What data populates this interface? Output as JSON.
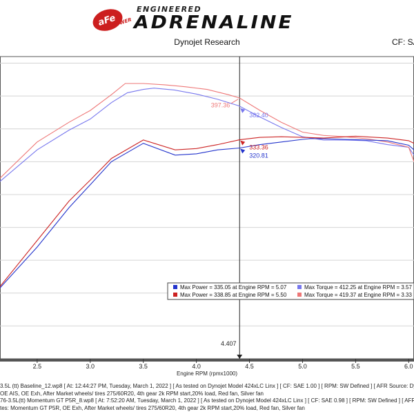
{
  "header": {
    "brand_badge_text": "aFe",
    "brand_badge_sub": "POWER",
    "subtitle": "ENGINEERED",
    "title": "ADRENALINE",
    "company": "Dynojet Research",
    "cf_label": "CF: SA"
  },
  "chart_data": {
    "type": "line",
    "xlabel": "Engine RPM (rpmx1000)",
    "ylabel": "",
    "xlim": [
      2.15,
      6.05
    ],
    "ylim": [
      0,
      460
    ],
    "x_ticks": [
      "2.5",
      "3.0",
      "3.5",
      "4.0",
      "4.5",
      "5.0",
      "5.5",
      "6.0"
    ],
    "cursor": {
      "x": 4.407,
      "label": "4.407"
    },
    "series": [
      {
        "name": "Max Torque = 412.25 at Engine RPM = 3.57",
        "color": "#7777ee",
        "x": [
          2.15,
          2.5,
          2.8,
          3.0,
          3.2,
          3.35,
          3.5,
          3.6,
          3.8,
          4.0,
          4.2,
          4.4,
          4.6,
          4.8,
          5.0,
          5.2,
          5.4,
          5.6,
          5.8,
          6.0,
          6.05
        ],
        "values": [
          270,
          318,
          348,
          365,
          390,
          405,
          410,
          412,
          409,
          403,
          395,
          385,
          368,
          352,
          338,
          333,
          333,
          332,
          326,
          322,
          310
        ]
      },
      {
        "name": "Max Torque = 419.37 at Engine RPM = 3.33",
        "color": "#ee7777",
        "x": [
          2.15,
          2.5,
          2.8,
          3.0,
          3.2,
          3.33,
          3.5,
          3.7,
          3.9,
          4.1,
          4.3,
          4.407,
          4.6,
          4.8,
          5.0,
          5.2,
          5.4,
          5.6,
          5.8,
          6.0,
          6.05
        ],
        "values": [
          275,
          330,
          360,
          378,
          402,
          419,
          419,
          417,
          414,
          410,
          402,
          397,
          378,
          360,
          345,
          340,
          338,
          335,
          330,
          322,
          300
        ]
      },
      {
        "name": "Max Power = 335.05 at Engine RPM = 5.07",
        "color": "#2233cc",
        "x": [
          2.15,
          2.5,
          2.8,
          3.0,
          3.2,
          3.5,
          3.8,
          4.0,
          4.2,
          4.407,
          4.6,
          4.8,
          5.0,
          5.07,
          5.2,
          5.4,
          5.6,
          5.8,
          6.0,
          6.05
        ],
        "values": [
          108,
          170,
          230,
          265,
          300,
          328,
          310,
          312,
          318,
          320.81,
          326,
          330,
          334,
          335,
          335,
          334,
          333,
          332,
          325,
          318
        ]
      },
      {
        "name": "Max Power = 338.85 at Engine RPM = 5.50",
        "color": "#cc2222",
        "x": [
          2.15,
          2.5,
          2.8,
          3.0,
          3.2,
          3.5,
          3.8,
          4.0,
          4.2,
          4.407,
          4.6,
          4.8,
          5.0,
          5.2,
          5.5,
          5.8,
          6.0,
          6.05
        ],
        "values": [
          110,
          180,
          240,
          272,
          305,
          333,
          318,
          320,
          326,
          333.36,
          337,
          338,
          337,
          336,
          338.85,
          336,
          332,
          328
        ]
      }
    ],
    "annotations": [
      {
        "text": "397.36",
        "x": 4.407,
        "y": 397.36,
        "color": "#ee7777",
        "side": "left"
      },
      {
        "text": "382.40",
        "x": 4.407,
        "y": 382.4,
        "color": "#7777ee",
        "side": "right"
      },
      {
        "text": "333.36",
        "x": 4.407,
        "y": 333.36,
        "color": "#cc2222",
        "side": "right"
      },
      {
        "text": "320.81",
        "x": 4.407,
        "y": 320.81,
        "color": "#2233cc",
        "side": "right"
      }
    ],
    "legend": {
      "placement": "bottom-right",
      "entries": [
        {
          "text": "Max Power = 335.05 at Engine RPM = 5.07",
          "color": "#2233cc"
        },
        {
          "text": "Max Torque = 412.25 at Engine RPM = 3.57",
          "color": "#7777ee"
        },
        {
          "text": "Max Power = 338.85 at Engine RPM = 5.50",
          "color": "#cc2222"
        },
        {
          "text": "Max Torque = 419.37 at Engine RPM = 3.33",
          "color": "#ee7777"
        }
      ]
    },
    "grid": "horizontal"
  },
  "footer": {
    "lines": [
      "3.5L (tt) Baseline_12.wp8 [ At: 12:44:27 PM, Tuesday, March 1, 2022 ] [ As tested on Dynojet Model 424xLC Linx ] [ CF: SAE 1.00 ] [ RPM: SW Defined ] [ AFR Source: Dynoware",
      "OE AIS, OE Exh, After Market wheels/ tires 275/60R20, 4th gear 2k RPM start,20% load, Red fan, Silver fan",
      "76-3.5L(tt) Momentum GT P5R_8.wp8 [ At: 7:52:20 AM, Tuesday, March 1, 2022 ] [ As tested on Dynojet Model 424xLC Linx ] [ CF: SAE 0.98 ] [ RPM: SW Defined ] [ AFR Source: D",
      "tes: Momentum GT  P5R, OE Exh, After Market wheels/ tires 275/60R20, 4th gear 2k RPM start,20% load, Red fan, Silver fan"
    ]
  }
}
